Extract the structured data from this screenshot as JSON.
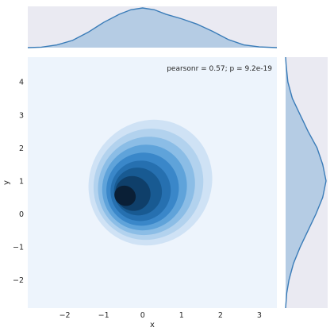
{
  "chart_data": {
    "type": "jointplot-kde",
    "title": "",
    "xlabel": "x",
    "ylabel": "y",
    "xlim": [
      -2.95,
      3.45
    ],
    "ylim": [
      -2.85,
      4.75
    ],
    "x_ticks": [
      -2,
      -1,
      0,
      1,
      2,
      3
    ],
    "y_ticks": [
      -2,
      -1,
      0,
      1,
      2,
      3,
      4
    ],
    "annotation": "pearsonr = 0.57; p = 9.2e-19",
    "annotation_position": "top-right",
    "grid": false,
    "kde_levels": [
      {
        "level": 1,
        "center": [
          0.2,
          0.95
        ],
        "sx": 1.55,
        "sy": 1.95,
        "angle_deg": 38
      },
      {
        "level": 2,
        "center": [
          0.15,
          0.9
        ],
        "sx": 1.38,
        "sy": 1.72,
        "angle_deg": 38
      },
      {
        "level": 3,
        "center": [
          0.1,
          0.85
        ],
        "sx": 1.22,
        "sy": 1.52,
        "angle_deg": 38
      },
      {
        "level": 4,
        "center": [
          0.05,
          0.8
        ],
        "sx": 1.07,
        "sy": 1.32,
        "angle_deg": 38
      },
      {
        "level": 5,
        "center": [
          0.0,
          0.75
        ],
        "sx": 0.92,
        "sy": 1.12,
        "angle_deg": 38
      },
      {
        "level": 6,
        "center": [
          -0.05,
          0.7
        ],
        "sx": 0.77,
        "sy": 0.92,
        "angle_deg": 38
      },
      {
        "level": 7,
        "center": [
          -0.12,
          0.68
        ],
        "sx": 0.62,
        "sy": 0.72,
        "angle_deg": 35
      },
      {
        "level": 8,
        "center": [
          -0.25,
          0.62
        ],
        "sx": 0.46,
        "sy": 0.52,
        "angle_deg": 35
      },
      {
        "level": 9,
        "center": [
          -0.45,
          0.55
        ],
        "sx": 0.28,
        "sy": 0.3,
        "angle_deg": 30
      }
    ],
    "kde_colors": [
      "#cfe2f5",
      "#b2d2ee",
      "#8bbde6",
      "#5fa3da",
      "#3a87c9",
      "#2670b0",
      "#185a92",
      "#0f3f6a",
      "#0a1f36"
    ],
    "bg_color": "#edf4fc",
    "marginal_color": "#3a7cb8",
    "marginal_fill": "#b5cce4",
    "marginal_x": {
      "x": [
        -2.95,
        -2.6,
        -2.2,
        -1.8,
        -1.4,
        -1.0,
        -0.6,
        -0.3,
        0.0,
        0.3,
        0.6,
        1.0,
        1.4,
        1.8,
        2.2,
        2.6,
        3.0,
        3.45
      ],
      "density": [
        0.0,
        0.005,
        0.03,
        0.08,
        0.17,
        0.28,
        0.37,
        0.42,
        0.44,
        0.42,
        0.37,
        0.32,
        0.26,
        0.18,
        0.09,
        0.03,
        0.008,
        0.0
      ]
    },
    "marginal_y": {
      "y": [
        -2.85,
        -2.4,
        -2.0,
        -1.5,
        -1.0,
        -0.5,
        0.0,
        0.5,
        1.0,
        1.5,
        2.0,
        2.5,
        3.0,
        3.5,
        4.0,
        4.5,
        4.75
      ],
      "density": [
        0.0,
        0.01,
        0.03,
        0.07,
        0.13,
        0.2,
        0.27,
        0.33,
        0.36,
        0.33,
        0.28,
        0.2,
        0.13,
        0.06,
        0.02,
        0.005,
        0.0
      ]
    }
  }
}
